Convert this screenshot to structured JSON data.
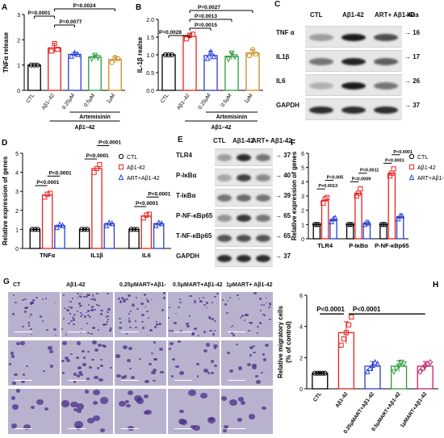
{
  "panels": {
    "A": {
      "letter": "A",
      "ylabel": "TNFα release",
      "ticks": [
        "0",
        "1",
        "2",
        "3"
      ],
      "ylim": [
        0,
        3
      ],
      "categories": [
        "CTL",
        "Aβ1–42",
        "0.25μM",
        "0.5μM",
        "1μM"
      ],
      "values": [
        1.0,
        1.68,
        1.42,
        1.31,
        1.22
      ],
      "errors": [
        0.0,
        0.18,
        0.08,
        0.09,
        0.12
      ],
      "points": [
        [
          1,
          1,
          1
        ],
        [
          1.55,
          1.85,
          1.62
        ],
        [
          1.35,
          1.48,
          1.42
        ],
        [
          1.25,
          1.38,
          1.3
        ],
        [
          1.1,
          1.3,
          1.25
        ]
      ],
      "colors": [
        "#000000",
        "#e8231f",
        "#2a3fd6",
        "#2b9a3a",
        "#c98b1f"
      ],
      "pvals": [
        "P=0.0001",
        "P=0.0077",
        "P=0.0024"
      ],
      "drug": "Artemisinin",
      "abeta": "Aβ1–42"
    },
    "B": {
      "letter": "B",
      "ylabel": "IL-1β realse",
      "ticks": [
        "0.0",
        "0.5",
        "1.0",
        "1.5",
        "2.0"
      ],
      "ylim": [
        0,
        2
      ],
      "categories": [
        "CTL",
        "Aβ1–42",
        "0.25μM",
        "0.5μM",
        "1μM"
      ],
      "values": [
        1.0,
        1.52,
        0.98,
        0.96,
        1.05
      ],
      "errors": [
        0.0,
        0.08,
        0.12,
        0.1,
        0.1
      ],
      "points": [
        [
          1,
          1,
          1
        ],
        [
          1.45,
          1.55,
          1.58
        ],
        [
          0.9,
          1.08,
          0.95
        ],
        [
          0.88,
          1.05,
          0.95
        ],
        [
          0.98,
          1.15,
          1.02
        ]
      ],
      "colors": [
        "#000000",
        "#e8231f",
        "#2a3fd6",
        "#2b9a3a",
        "#c98b1f"
      ],
      "pvals": [
        "P=0.0028",
        "P=0.0015",
        "P=0.0013",
        "P=0.0027"
      ],
      "drug": "Artemisinin",
      "abeta": "Aβ1–42"
    },
    "C": {
      "letter": "C",
      "headers": [
        "CTL",
        "Aβ1-42",
        "ART+ Aβ1-42"
      ],
      "kda": "kDa",
      "rows": [
        {
          "label": "TNF α",
          "mw": "16",
          "bands": [
            0.35,
            1.0,
            0.75
          ]
        },
        {
          "label": "IL1β",
          "mw": "17",
          "bands": [
            0.55,
            0.95,
            0.65
          ]
        },
        {
          "label": "IL6",
          "mw": "26",
          "bands": [
            0.25,
            1.0,
            0.55
          ]
        },
        {
          "label": "GAPDH",
          "mw": "37",
          "bands": [
            0.9,
            0.9,
            0.9
          ]
        }
      ]
    },
    "D": {
      "letter": "D",
      "ylabel": "Relative expression of genes",
      "ticks": [
        "0",
        "1",
        "2",
        "3",
        "4",
        "5"
      ],
      "ylim": [
        0,
        5
      ],
      "categories": [
        "TNFα",
        "IL1β",
        "IL6"
      ],
      "series": [
        {
          "name": "CTL",
          "color": "#000000",
          "values": [
            1.0,
            1.0,
            1.0
          ],
          "points": [
            [
              1,
              1,
              1
            ],
            [
              1,
              1,
              1
            ],
            [
              1,
              1,
              1
            ]
          ]
        },
        {
          "name": "Aβ1-42",
          "color": "#e8231f",
          "values": [
            2.8,
            4.2,
            1.7
          ],
          "points": [
            [
              2.7,
              2.85,
              2.9
            ],
            [
              4.0,
              4.2,
              4.4
            ],
            [
              1.6,
              1.75,
              1.8
            ]
          ]
        },
        {
          "name": "ART+Aβ1-42",
          "color": "#2a3fd6",
          "values": [
            1.2,
            1.3,
            1.3
          ],
          "points": [
            [
              1.1,
              1.25,
              1.2
            ],
            [
              1.2,
              1.35,
              1.3
            ],
            [
              1.2,
              1.35,
              1.3
            ]
          ]
        }
      ],
      "pvals": [
        "P<0.0001",
        "P<0.0001",
        "P<0.0001",
        "P<0.0001",
        "P<0.0001",
        "P<0.0001"
      ]
    },
    "E": {
      "letter": "E",
      "headers": [
        "CTL",
        "Aβ1-42",
        "ART+ Aβ1-42"
      ],
      "rows": [
        {
          "label": "TLR4",
          "mw": "37",
          "bands": [
            0.35,
            0.9,
            0.55
          ]
        },
        {
          "label": "P-IκBα",
          "mw": "40",
          "bands": [
            0.3,
            0.8,
            0.45
          ]
        },
        {
          "label": "T-IκBα",
          "mw": "39",
          "bands": [
            0.55,
            0.6,
            0.55
          ]
        },
        {
          "label": "P-NF-κBp65",
          "mw": "65",
          "bands": [
            0.4,
            0.85,
            0.55
          ]
        },
        {
          "label": "T-NF-κBp65",
          "mw": "65",
          "bands": [
            0.7,
            0.72,
            0.7
          ]
        },
        {
          "label": "GAPDH",
          "mw": "37",
          "bands": [
            0.9,
            0.9,
            0.9
          ]
        }
      ]
    },
    "F": {
      "letter": "F",
      "ylabel": "Relative expression of genes",
      "ticks": [
        "0",
        "1",
        "2",
        "3",
        "4",
        "5",
        "6"
      ],
      "ylim": [
        0,
        6
      ],
      "categories": [
        "TLR4",
        "P-IκBα",
        "P-NF-κBp65"
      ],
      "series": [
        {
          "name": "CTL",
          "color": "#000000",
          "values": [
            1.0,
            1.0,
            1.0
          ],
          "points": [
            [
              1,
              1,
              1
            ],
            [
              1,
              1,
              1
            ],
            [
              1,
              1,
              1
            ]
          ]
        },
        {
          "name": "Aβ1-42",
          "color": "#e8231f",
          "values": [
            2.7,
            3.2,
            4.6
          ],
          "points": [
            [
              2.5,
              2.8,
              2.9
            ],
            [
              3.0,
              3.2,
              3.5
            ],
            [
              4.4,
              4.6,
              4.9
            ]
          ]
        },
        {
          "name": "ART+Aβ1-42",
          "color": "#2a3fd6",
          "values": [
            1.35,
            1.1,
            1.55
          ],
          "points": [
            [
              1.2,
              1.4,
              1.45
            ],
            [
              1.0,
              1.15,
              1.1
            ],
            [
              1.4,
              1.6,
              1.6
            ]
          ]
        }
      ],
      "pvals": [
        "P=0.0013",
        "P=0.005",
        "P=0.0009",
        "P=0.0011",
        "P<0.0001",
        "P<0.0001"
      ]
    },
    "G": {
      "letter": "G",
      "headers": [
        "CT",
        "Aβ1-42",
        "0.25μMART+Aβ1-",
        "0.5μMART+Aβ1-42",
        "1μMART+ Aβ1-42"
      ],
      "density": [
        0.35,
        1.0,
        0.6,
        0.5,
        0.45
      ]
    },
    "H": {
      "letter": "H",
      "ylabel": "Relative migratory cells\n(% of control)",
      "ticks": [
        "0",
        "2",
        "4",
        "6"
      ],
      "ylim": [
        0,
        6
      ],
      "categories": [
        "CTL",
        "Aβ1-42",
        "0.25μMART+Aβ1-42",
        "0.5μMART+Aβ1-42",
        "1μMART+Aβ1-42"
      ],
      "values": [
        1.0,
        3.6,
        1.45,
        1.45,
        1.45
      ],
      "errors": [
        0.05,
        0.7,
        0.3,
        0.35,
        0.3
      ],
      "points": [
        [
          1,
          1,
          1,
          1,
          1
        ],
        [
          2.8,
          3.2,
          3.6,
          4.1,
          4.6
        ],
        [
          1.1,
          1.3,
          1.5,
          1.7,
          1.6
        ],
        [
          1.1,
          1.3,
          1.45,
          1.7,
          1.6
        ],
        [
          1.1,
          1.3,
          1.5,
          1.6,
          1.7
        ]
      ],
      "colors": [
        "#000000",
        "#e8231f",
        "#2a3fd6",
        "#2b9a3a",
        "#c0236b"
      ],
      "pvals": [
        "P<0.0001",
        "P<0.0001"
      ]
    }
  }
}
